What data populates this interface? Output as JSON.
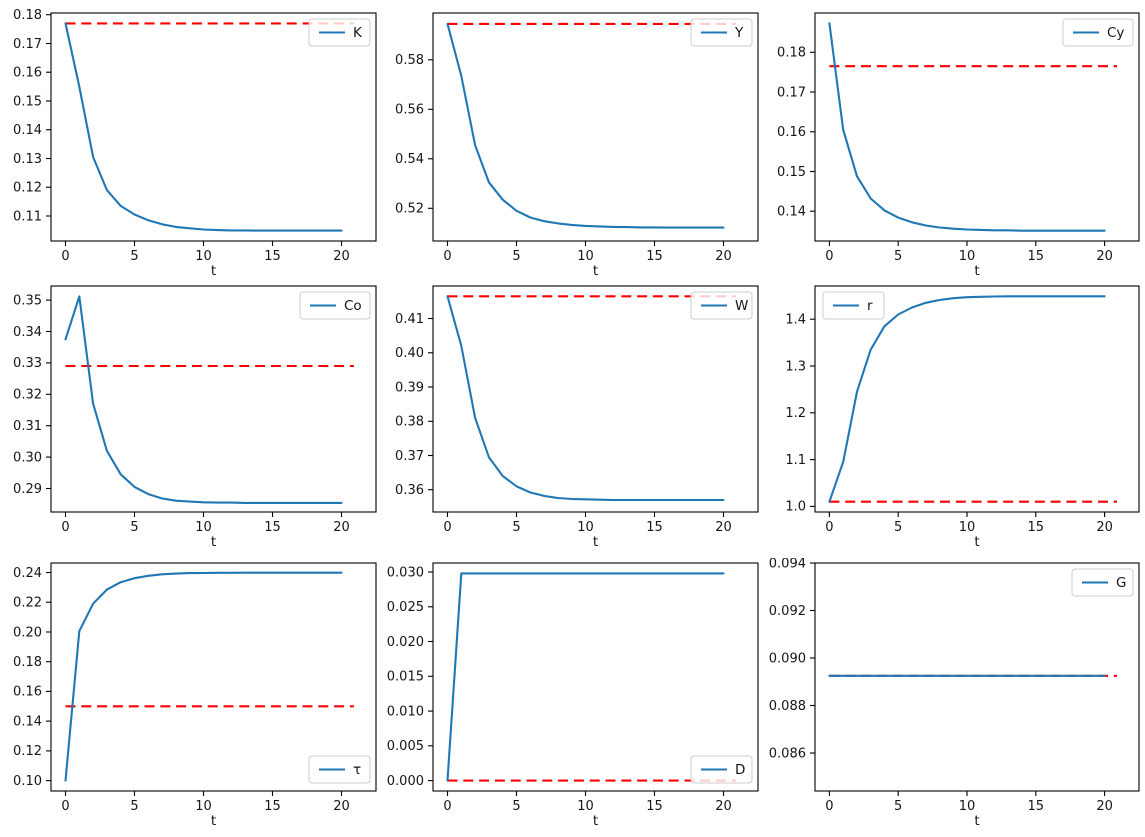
{
  "figure": {
    "background": "#ffffff",
    "line_color": "#1f77b4",
    "steady_color": "#ff0000",
    "axis_color": "#000000",
    "xlabel": "t",
    "steady_x": [
      0,
      20.9
    ]
  },
  "chart_data": [
    {
      "type": "line",
      "name": "K",
      "legend_label": "K",
      "legend_loc": "upper-right",
      "xlabel": "t",
      "grid": false,
      "x": [
        0,
        1,
        2,
        3,
        4,
        5,
        6,
        7,
        8,
        9,
        10,
        11,
        12,
        13,
        14,
        15,
        16,
        17,
        18,
        19,
        20
      ],
      "values": [
        0.177,
        0.155,
        0.1305,
        0.119,
        0.1135,
        0.1105,
        0.1085,
        0.1071,
        0.1062,
        0.1057,
        0.1053,
        0.1051,
        0.105,
        0.105,
        0.1049,
        0.1049,
        0.1049,
        0.1049,
        0.1049,
        0.1049,
        0.1049
      ],
      "steady_value": 0.177,
      "xlim": [
        -1.05,
        22.5
      ],
      "ylim": [
        0.1013,
        0.1806
      ],
      "xticks": [
        0,
        5,
        10,
        15,
        20
      ],
      "yticks": [
        0.11,
        0.12,
        0.13,
        0.14,
        0.15,
        0.16,
        0.17,
        0.18
      ],
      "ytick_labels": [
        "0.11",
        "0.12",
        "0.13",
        "0.14",
        "0.15",
        "0.16",
        "0.17",
        "0.18"
      ]
    },
    {
      "type": "line",
      "name": "Y",
      "legend_label": "Y",
      "legend_loc": "upper-right",
      "xlabel": "t",
      "grid": false,
      "x": [
        0,
        1,
        2,
        3,
        4,
        5,
        6,
        7,
        8,
        9,
        10,
        11,
        12,
        13,
        14,
        15,
        16,
        17,
        18,
        19,
        20
      ],
      "values": [
        0.5945,
        0.5735,
        0.5455,
        0.5305,
        0.5235,
        0.519,
        0.5163,
        0.5148,
        0.5139,
        0.5133,
        0.5129,
        0.5127,
        0.5125,
        0.5124,
        0.5123,
        0.5123,
        0.5122,
        0.5122,
        0.5122,
        0.5122,
        0.5122
      ],
      "steady_value": 0.5945,
      "xlim": [
        -1.05,
        22.5
      ],
      "ylim": [
        0.5068,
        0.5989
      ],
      "xticks": [
        0,
        5,
        10,
        15,
        20
      ],
      "yticks": [
        0.52,
        0.54,
        0.56,
        0.58
      ],
      "ytick_labels": [
        "0.52",
        "0.54",
        "0.56",
        "0.58"
      ]
    },
    {
      "type": "line",
      "name": "Cy",
      "legend_label": "Cy",
      "legend_loc": "upper-right",
      "xlabel": "t",
      "grid": false,
      "x": [
        0,
        1,
        2,
        3,
        4,
        5,
        6,
        7,
        8,
        9,
        10,
        11,
        12,
        13,
        14,
        15,
        16,
        17,
        18,
        19,
        20
      ],
      "values": [
        0.1873,
        0.1605,
        0.1488,
        0.1432,
        0.1402,
        0.1384,
        0.1372,
        0.1364,
        0.1359,
        0.1356,
        0.1354,
        0.1353,
        0.1352,
        0.1352,
        0.1351,
        0.1351,
        0.1351,
        0.1351,
        0.1351,
        0.1351,
        0.1351
      ],
      "steady_value": 0.1765,
      "xlim": [
        -1.05,
        22.5
      ],
      "ylim": [
        0.1325,
        0.1899
      ],
      "xticks": [
        0,
        5,
        10,
        15,
        20
      ],
      "yticks": [
        0.14,
        0.15,
        0.16,
        0.17,
        0.18
      ],
      "ytick_labels": [
        "0.14",
        "0.15",
        "0.16",
        "0.17",
        "0.18"
      ]
    },
    {
      "type": "line",
      "name": "Co",
      "legend_label": "Co",
      "legend_loc": "upper-right",
      "xlabel": "t",
      "grid": false,
      "x": [
        0,
        1,
        2,
        3,
        4,
        5,
        6,
        7,
        8,
        9,
        10,
        11,
        12,
        13,
        14,
        15,
        16,
        17,
        18,
        19,
        20
      ],
      "values": [
        0.3375,
        0.3512,
        0.317,
        0.302,
        0.2945,
        0.2905,
        0.2882,
        0.2868,
        0.2861,
        0.2858,
        0.2856,
        0.2855,
        0.2855,
        0.2854,
        0.2854,
        0.2854,
        0.2854,
        0.2854,
        0.2854,
        0.2854,
        0.2854
      ],
      "steady_value": 0.329,
      "xlim": [
        -1.05,
        22.5
      ],
      "ylim": [
        0.2825,
        0.3545
      ],
      "xticks": [
        0,
        5,
        10,
        15,
        20
      ],
      "yticks": [
        0.29,
        0.3,
        0.31,
        0.32,
        0.33,
        0.34,
        0.35
      ],
      "ytick_labels": [
        "0.29",
        "0.30",
        "0.31",
        "0.32",
        "0.33",
        "0.34",
        "0.35"
      ]
    },
    {
      "type": "line",
      "name": "W",
      "legend_label": "W",
      "legend_loc": "upper-right",
      "xlabel": "t",
      "grid": false,
      "x": [
        0,
        1,
        2,
        3,
        4,
        5,
        6,
        7,
        8,
        9,
        10,
        11,
        12,
        13,
        14,
        15,
        16,
        17,
        18,
        19,
        20
      ],
      "values": [
        0.4165,
        0.402,
        0.381,
        0.3695,
        0.364,
        0.361,
        0.3592,
        0.3582,
        0.3576,
        0.3573,
        0.3572,
        0.3571,
        0.357,
        0.357,
        0.357,
        0.357,
        0.357,
        0.357,
        0.357,
        0.357,
        0.357
      ],
      "steady_value": 0.4165,
      "xlim": [
        -1.05,
        22.5
      ],
      "ylim": [
        0.3535,
        0.4195
      ],
      "xticks": [
        0,
        5,
        10,
        15,
        20
      ],
      "yticks": [
        0.36,
        0.37,
        0.38,
        0.39,
        0.4,
        0.41
      ],
      "ytick_labels": [
        "0.36",
        "0.37",
        "0.38",
        "0.39",
        "0.40",
        "0.41"
      ]
    },
    {
      "type": "line",
      "name": "r",
      "legend_label": "r",
      "legend_loc": "upper-left",
      "xlabel": "t",
      "grid": false,
      "x": [
        0,
        1,
        2,
        3,
        4,
        5,
        6,
        7,
        8,
        9,
        10,
        11,
        12,
        13,
        14,
        15,
        16,
        17,
        18,
        19,
        20
      ],
      "values": [
        1.01,
        1.095,
        1.245,
        1.335,
        1.385,
        1.41,
        1.425,
        1.435,
        1.441,
        1.445,
        1.447,
        1.448,
        1.4485,
        1.449,
        1.449,
        1.449,
        1.449,
        1.449,
        1.449,
        1.449,
        1.449
      ],
      "steady_value": 1.01,
      "xlim": [
        -1.05,
        22.5
      ],
      "ylim": [
        0.988,
        1.471
      ],
      "xticks": [
        0,
        5,
        10,
        15,
        20
      ],
      "yticks": [
        1.0,
        1.1,
        1.2,
        1.3,
        1.4
      ],
      "ytick_labels": [
        "1.0",
        "1.1",
        "1.2",
        "1.3",
        "1.4"
      ]
    },
    {
      "type": "line",
      "name": "tau",
      "legend_label": "τ",
      "legend_loc": "lower-right",
      "xlabel": "t",
      "grid": false,
      "x": [
        0,
        1,
        2,
        3,
        4,
        5,
        6,
        7,
        8,
        9,
        10,
        11,
        12,
        13,
        14,
        15,
        16,
        17,
        18,
        19,
        20
      ],
      "values": [
        0.1,
        0.2005,
        0.219,
        0.2285,
        0.2335,
        0.2362,
        0.2378,
        0.2388,
        0.2393,
        0.2396,
        0.2397,
        0.2398,
        0.2398,
        0.2399,
        0.2399,
        0.2399,
        0.2399,
        0.2399,
        0.2399,
        0.2399,
        0.2399
      ],
      "steady_value": 0.15,
      "xlim": [
        -1.05,
        22.5
      ],
      "ylim": [
        0.093,
        0.2464
      ],
      "xticks": [
        0,
        5,
        10,
        15,
        20
      ],
      "yticks": [
        0.1,
        0.12,
        0.14,
        0.16,
        0.18,
        0.2,
        0.22,
        0.24
      ],
      "ytick_labels": [
        "0.10",
        "0.12",
        "0.14",
        "0.16",
        "0.18",
        "0.20",
        "0.22",
        "0.24"
      ]
    },
    {
      "type": "line",
      "name": "D",
      "legend_label": "D",
      "legend_loc": "lower-right",
      "xlabel": "t",
      "grid": false,
      "x": [
        0,
        1,
        2,
        3,
        4,
        5,
        6,
        7,
        8,
        9,
        10,
        11,
        12,
        13,
        14,
        15,
        16,
        17,
        18,
        19,
        20
      ],
      "values": [
        0.0,
        0.0298,
        0.0298,
        0.0298,
        0.0298,
        0.0298,
        0.0298,
        0.0298,
        0.0298,
        0.0298,
        0.0298,
        0.0298,
        0.0298,
        0.0298,
        0.0298,
        0.0298,
        0.0298,
        0.0298,
        0.0298,
        0.0298,
        0.0298
      ],
      "steady_value": 0.0,
      "xlim": [
        -1.05,
        22.5
      ],
      "ylim": [
        -0.0015,
        0.0313
      ],
      "xticks": [
        0,
        5,
        10,
        15,
        20
      ],
      "yticks": [
        0.0,
        0.005,
        0.01,
        0.015,
        0.02,
        0.025,
        0.03
      ],
      "ytick_labels": [
        "0.000",
        "0.005",
        "0.010",
        "0.015",
        "0.020",
        "0.025",
        "0.030"
      ]
    },
    {
      "type": "line",
      "name": "G",
      "legend_label": "G",
      "legend_loc": "upper-right",
      "xlabel": "t",
      "grid": false,
      "x": [
        0,
        1,
        2,
        3,
        4,
        5,
        6,
        7,
        8,
        9,
        10,
        11,
        12,
        13,
        14,
        15,
        16,
        17,
        18,
        19,
        20
      ],
      "values": [
        0.08925,
        0.08925,
        0.08925,
        0.08925,
        0.08925,
        0.08925,
        0.08925,
        0.08925,
        0.08925,
        0.08925,
        0.08925,
        0.08925,
        0.08925,
        0.08925,
        0.08925,
        0.08925,
        0.08925,
        0.08925,
        0.08925,
        0.08925,
        0.08925
      ],
      "steady_value": 0.08925,
      "xlim": [
        -1.05,
        22.5
      ],
      "ylim": [
        0.0844,
        0.094
      ],
      "xticks": [
        0,
        5,
        10,
        15,
        20
      ],
      "yticks": [
        0.086,
        0.088,
        0.09,
        0.092,
        0.094
      ],
      "ytick_labels": [
        "0.086",
        "0.088",
        "0.090",
        "0.092",
        "0.094"
      ]
    }
  ]
}
